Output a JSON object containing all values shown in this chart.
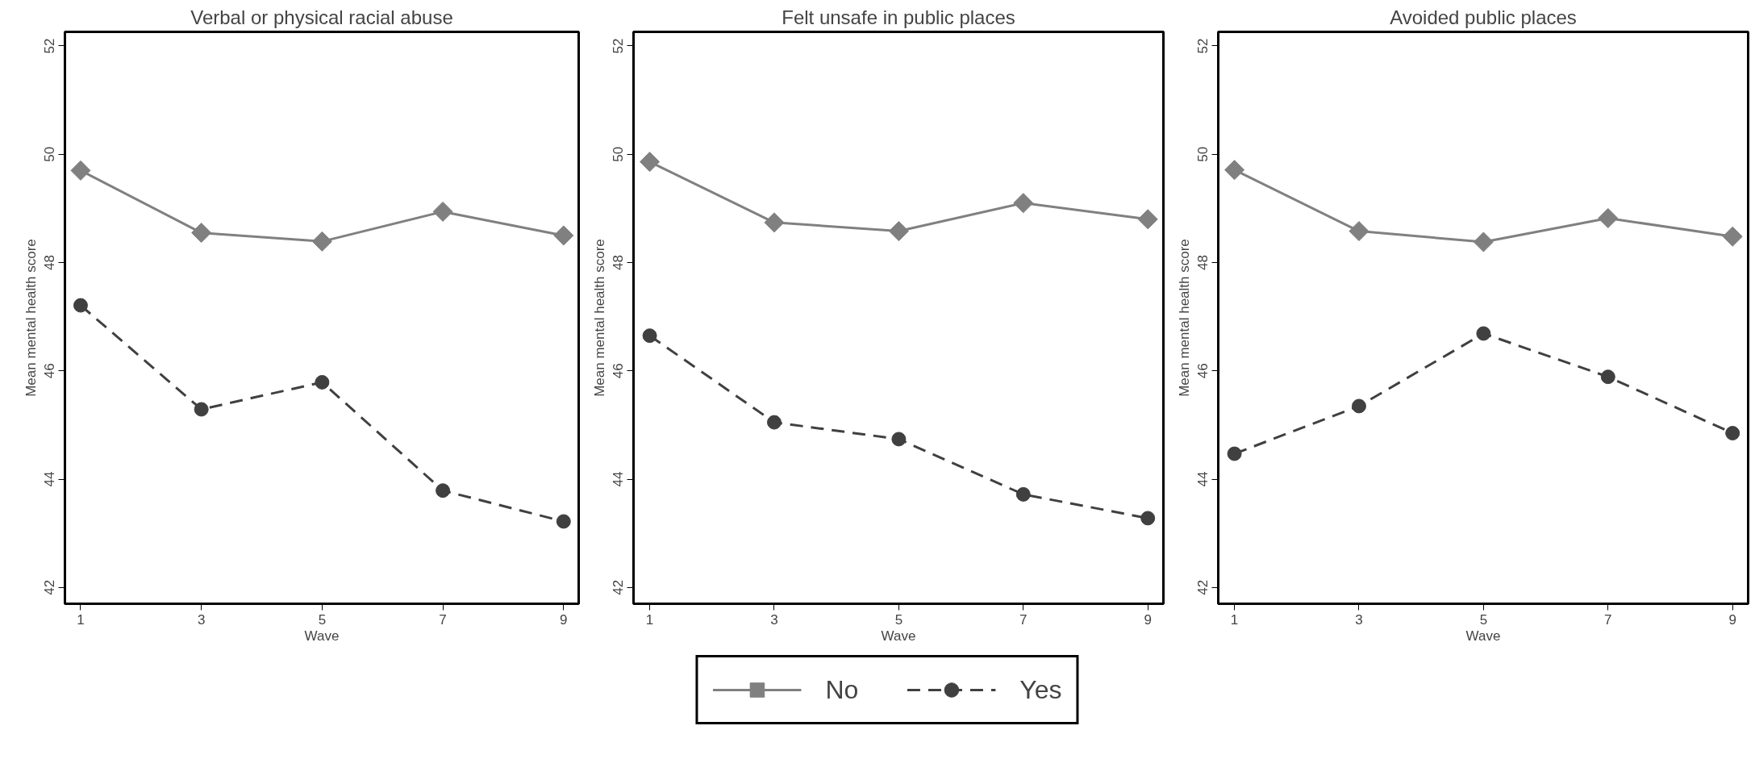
{
  "chart_data": [
    {
      "type": "line",
      "title": "Verbal or physical racial abuse",
      "xlabel": "Wave",
      "ylabel": "Mean mental health score",
      "x": [
        1,
        3,
        5,
        7,
        9
      ],
      "xlim": [
        0.74,
        9.25
      ],
      "xticks": [
        1,
        3,
        5,
        7,
        9
      ],
      "ylim": [
        41.7,
        52.26
      ],
      "yticks": [
        42,
        44,
        46,
        48,
        50,
        52
      ],
      "grid": false,
      "legend": "bottom",
      "series": [
        {
          "name": "No",
          "color": "#808080",
          "marker": "diamond",
          "line_style": "solid",
          "values": [
            49.7,
            48.55,
            48.39,
            48.94,
            48.5
          ]
        },
        {
          "name": "Yes",
          "color": "#404040",
          "marker": "circle",
          "line_style": "dashed",
          "values": [
            47.21,
            45.29,
            45.79,
            43.79,
            43.22
          ]
        }
      ]
    },
    {
      "type": "line",
      "title": "Felt unsafe in public places",
      "xlabel": "Wave",
      "ylabel": "Mean mental health score",
      "x": [
        1,
        3,
        5,
        7,
        9
      ],
      "xlim": [
        0.74,
        9.25
      ],
      "xticks": [
        1,
        3,
        5,
        7,
        9
      ],
      "ylim": [
        41.7,
        52.26
      ],
      "yticks": [
        42,
        44,
        46,
        48,
        50,
        52
      ],
      "grid": false,
      "series": [
        {
          "color": "#808080",
          "marker": "diamond",
          "line_style": "solid",
          "values": [
            49.86,
            48.74,
            48.58,
            49.1,
            48.8
          ]
        },
        {
          "color": "#404040",
          "marker": "circle",
          "line_style": "dashed",
          "values": [
            46.65,
            45.05,
            44.74,
            43.72,
            43.28
          ]
        }
      ]
    },
    {
      "type": "line",
      "title": "Avoided public places",
      "xlabel": "Wave",
      "ylabel": "Mean mental health score",
      "x": [
        1,
        3,
        5,
        7,
        9
      ],
      "xlim": [
        0.74,
        9.25
      ],
      "xticks": [
        1,
        3,
        5,
        7,
        9
      ],
      "ylim": [
        41.7,
        52.26
      ],
      "yticks": [
        42,
        44,
        46,
        48,
        50,
        52
      ],
      "grid": false,
      "series": [
        {
          "color": "#808080",
          "marker": "diamond",
          "line_style": "solid",
          "values": [
            49.71,
            48.58,
            48.38,
            48.82,
            48.48
          ]
        },
        {
          "color": "#404040",
          "marker": "circle",
          "line_style": "dashed",
          "values": [
            44.47,
            45.35,
            46.69,
            45.89,
            44.85
          ]
        }
      ]
    }
  ]
}
